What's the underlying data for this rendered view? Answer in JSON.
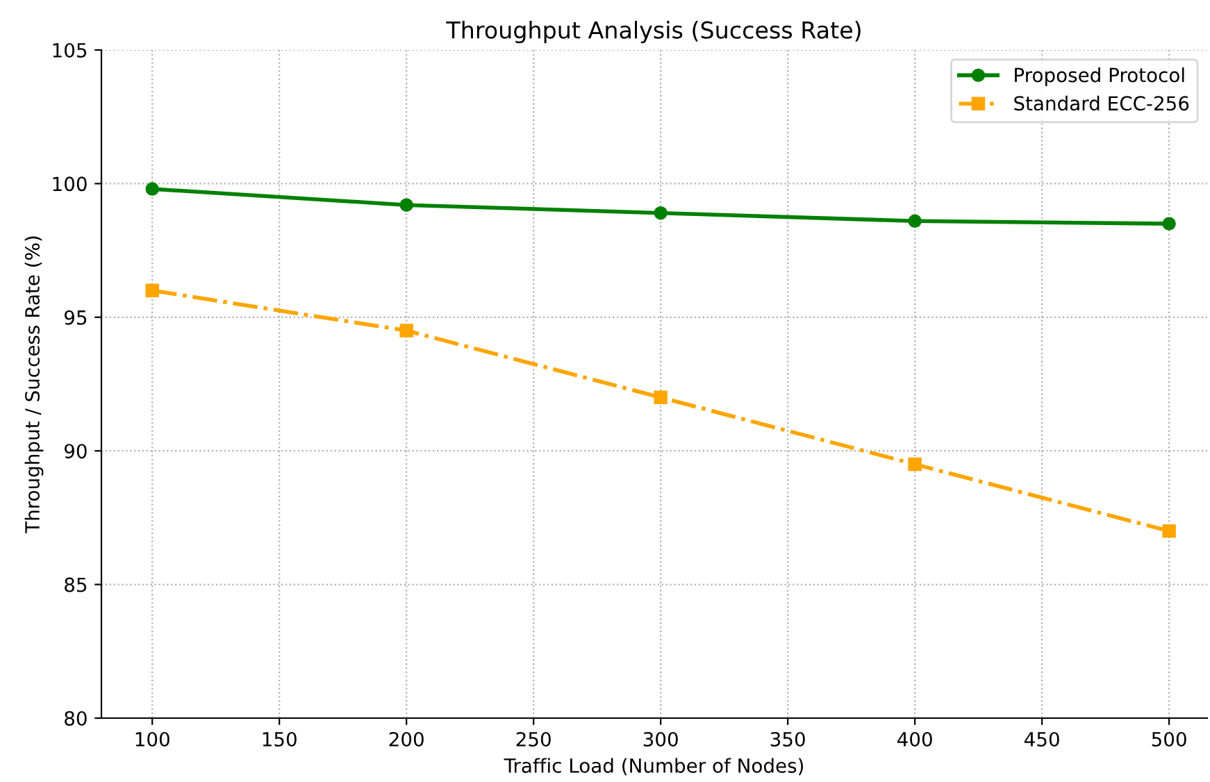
{
  "chart_data": {
    "type": "line",
    "title": "Throughput Analysis (Success Rate)",
    "xlabel": "Traffic Load (Number of Nodes)",
    "ylabel": "Throughput / Success Rate (%)",
    "x": [
      100,
      200,
      300,
      400,
      500
    ],
    "series": [
      {
        "name": "Proposed Protocol",
        "color": "#008000",
        "values": [
          99.8,
          99.2,
          98.9,
          98.6,
          98.5
        ],
        "marker": "circle",
        "line_style": "solid"
      },
      {
        "name": "Standard ECC-256",
        "color": "#ffa500",
        "values": [
          96.0,
          94.5,
          92.0,
          89.5,
          87.0
        ],
        "marker": "square",
        "line_style": "dashdot"
      }
    ],
    "xlim": [
      80,
      515
    ],
    "xticks": [
      100,
      150,
      200,
      250,
      300,
      350,
      400,
      450,
      500
    ],
    "ylim": [
      80,
      105
    ],
    "yticks": [
      80,
      85,
      90,
      95,
      100,
      105
    ],
    "grid": true,
    "legend": "top right"
  }
}
